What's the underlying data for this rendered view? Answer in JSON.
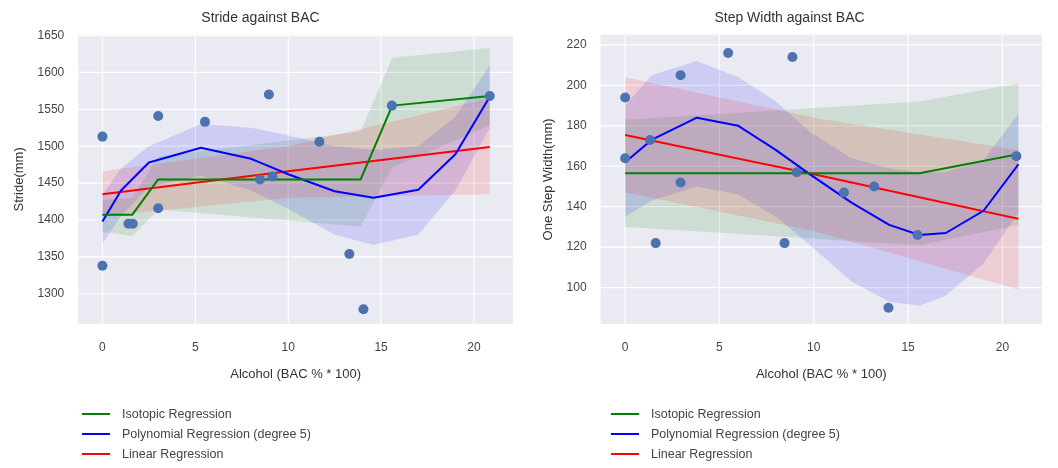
{
  "chart_data": [
    {
      "type": "scatter",
      "title": "Stride against BAC",
      "xlabel": "Alcohol (BAC % * 100)",
      "ylabel": "Stride(mm)",
      "xlim": [
        -1.3,
        22.1
      ],
      "ylim": [
        1259,
        1651
      ],
      "xticks": [
        0,
        5,
        10,
        15,
        20
      ],
      "yticks": [
        1300,
        1350,
        1400,
        1450,
        1500,
        1550,
        1600,
        1650
      ],
      "grid": true,
      "legend": "bottom",
      "series": [
        {
          "type": "scatter",
          "color": "#4c72b0",
          "marker": "circle",
          "x": [
            0,
            0,
            3.0,
            3.0,
            1.4,
            1.63,
            5.52,
            8.96,
            8.48,
            9.15,
            11.68,
            13.29,
            14.05,
            15.58,
            20.85
          ],
          "values": [
            1513,
            1338,
            1541,
            1416,
            1395,
            1395,
            1533,
            1570,
            1455,
            1459,
            1506,
            1354,
            1279,
            1555,
            1568
          ]
        },
        {
          "type": "line",
          "name": "Isotopic Regression",
          "color": "#008000",
          "marker": "none",
          "x": [
            0,
            1.6,
            3.0,
            13.9,
            15.6,
            20.85
          ],
          "values": [
            1407,
            1407,
            1455,
            1455,
            1555,
            1568
          ],
          "lower": [
            1384,
            1378,
            1414,
            1391,
            1471,
            1528
          ],
          "upper": [
            1427,
            1430,
            1486,
            1520,
            1620,
            1633
          ]
        },
        {
          "type": "line",
          "name": "Polynomial Regression (degree 5)",
          "color": "#0000ff",
          "marker": "none",
          "x": [
            0,
            1,
            2.5,
            5.3,
            8,
            10,
            12.5,
            14.6,
            17,
            19,
            20.85
          ],
          "values": [
            1398,
            1440,
            1478,
            1498,
            1483,
            1462,
            1439,
            1430,
            1441,
            1489,
            1567
          ],
          "lower": [
            1368,
            1405,
            1445,
            1460,
            1440,
            1415,
            1380,
            1366,
            1380,
            1440,
            1525
          ],
          "upper": [
            1434,
            1470,
            1500,
            1530,
            1525,
            1515,
            1500,
            1495,
            1500,
            1540,
            1610
          ]
        },
        {
          "type": "line",
          "name": "Linear Regression",
          "color": "#ff0000",
          "marker": "none",
          "x": [
            0,
            10,
            20.85
          ],
          "values": [
            1435,
            1466,
            1499
          ],
          "lower": [
            1405,
            1430,
            1435
          ],
          "upper": [
            1466,
            1500,
            1565
          ]
        }
      ]
    },
    {
      "type": "scatter",
      "title": "Step Width against BAC",
      "xlabel": "Alcohol (BAC % * 100)",
      "ylabel": "One Step Width(mm)",
      "xlim": [
        -1.3,
        22.1
      ],
      "ylim": [
        82,
        225
      ],
      "xticks": [
        0,
        5,
        10,
        15,
        20
      ],
      "yticks": [
        100,
        120,
        140,
        160,
        180,
        200,
        220
      ],
      "grid": true,
      "legend": "bottom",
      "series": [
        {
          "type": "scatter",
          "color": "#4c72b0",
          "marker": "circle",
          "x": [
            0,
            0,
            1.32,
            1.62,
            2.94,
            2.94,
            5.46,
            8.87,
            8.45,
            9.1,
            11.6,
            13.2,
            13.96,
            15.5,
            20.74
          ],
          "values": [
            194,
            164,
            173,
            122,
            205,
            152,
            216,
            214,
            122,
            157,
            147,
            150,
            90,
            126,
            165
          ]
        },
        {
          "type": "line",
          "name": "Isotopic Regression",
          "color": "#008000",
          "marker": "none",
          "x": [
            0,
            15.6,
            20.85
          ],
          "values": [
            156.5,
            156.5,
            166
          ],
          "lower": [
            130,
            121,
            131
          ],
          "upper": [
            183,
            192,
            201
          ]
        },
        {
          "type": "line",
          "name": "Polynomial Regression (degree 5)",
          "color": "#0000ff",
          "marker": "none",
          "x": [
            0,
            1.4,
            3.8,
            6,
            8,
            9.8,
            12,
            14,
            15.6,
            17,
            19,
            20.85
          ],
          "values": [
            162,
            173,
            184,
            180,
            168,
            156,
            142,
            131,
            126,
            127,
            138,
            161
          ],
          "lower": [
            135,
            143,
            150,
            146,
            135,
            121,
            103,
            93,
            91,
            96,
            112,
            137
          ],
          "upper": [
            190,
            205,
            212,
            204,
            192,
            177,
            164,
            159,
            157,
            157,
            163,
            186
          ]
        },
        {
          "type": "line",
          "name": "Linear Regression",
          "color": "#ff0000",
          "marker": "none",
          "x": [
            0,
            10,
            20.85
          ],
          "values": [
            175.5,
            156,
            134
          ],
          "lower": [
            147,
            128,
            99
          ],
          "upper": [
            204,
            184,
            168
          ]
        }
      ]
    }
  ]
}
